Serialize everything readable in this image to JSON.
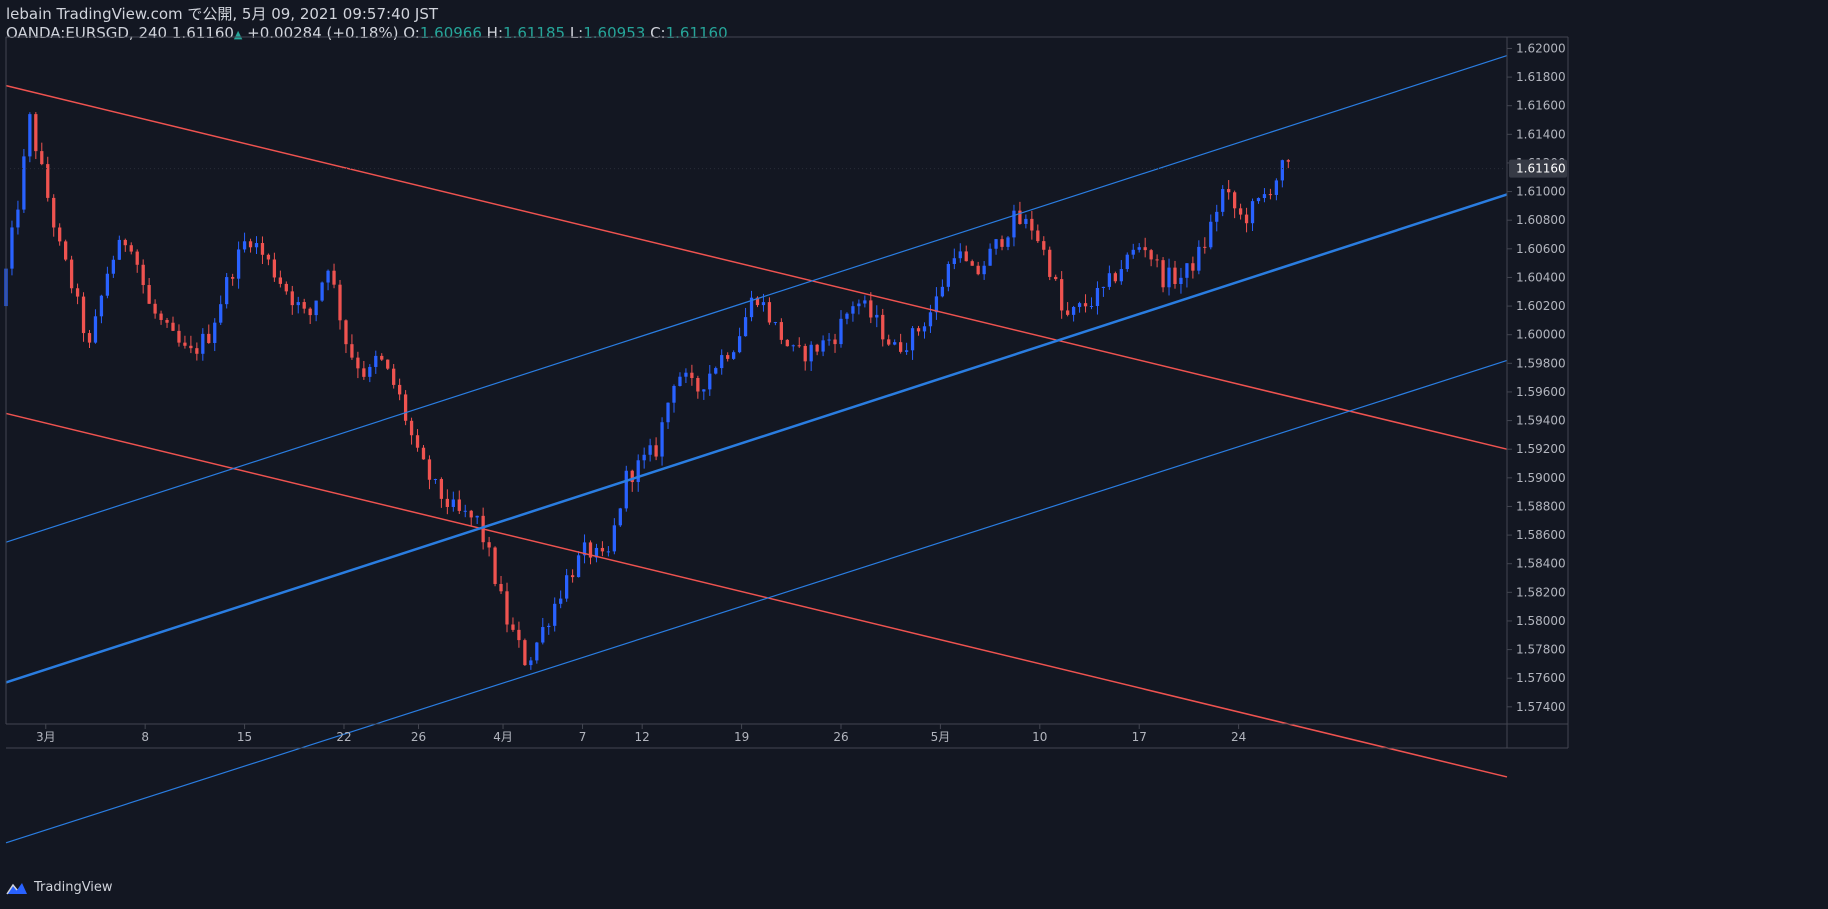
{
  "header": {
    "line1": "lebain TradingView.com で公開, 5月 09, 2021 09:57:40 JST",
    "symbol": "OANDA:EURSGD, 240",
    "last": "1.61160",
    "change_arrow": "▲",
    "change": "+0.00284 (+0.18%)",
    "o_label": "O:",
    "o_value": "1.60966",
    "h_label": "H:",
    "h_value": "1.61185",
    "l_label": "L:",
    "l_value": "1.60953",
    "c_label": "C:",
    "c_value": "1.61160"
  },
  "footer": {
    "brand": "TradingView",
    "logo_icon": "tradingview-logo-icon"
  },
  "colors": {
    "background": "#131722",
    "up": "#2962ff",
    "down": "#ef5350",
    "channel_blue": "#2a7de1",
    "channel_red": "#ef5350",
    "axis_text": "#b2b5be",
    "border": "#434651"
  },
  "chart_data": {
    "type": "candlestick",
    "symbol": "OANDA:EURSGD",
    "interval": "240",
    "price_label": "1.61160",
    "yticks": [
      "1.57400",
      "1.57600",
      "1.57800",
      "1.58000",
      "1.58200",
      "1.58400",
      "1.58600",
      "1.58800",
      "1.59000",
      "1.59200",
      "1.59400",
      "1.59600",
      "1.59800",
      "1.60000",
      "1.60200",
      "1.60400",
      "1.60600",
      "1.60800",
      "1.61000",
      "1.61200",
      "1.61400",
      "1.61600",
      "1.61800",
      "1.62000"
    ],
    "ylim": [
      1.5728,
      1.6208
    ],
    "xlim": [
      0,
      151
    ],
    "xticks": [
      {
        "label": "3月",
        "day": 4
      },
      {
        "label": "8",
        "day": 14
      },
      {
        "label": "15",
        "day": 24
      },
      {
        "label": "22",
        "day": 34
      },
      {
        "label": "26",
        "day": 41.5
      },
      {
        "label": "4月",
        "day": 50
      },
      {
        "label": "7",
        "day": 58
      },
      {
        "label": "12",
        "day": 64
      },
      {
        "label": "19",
        "day": 74
      },
      {
        "label": "26",
        "day": 84
      },
      {
        "label": "5月",
        "day": 94
      },
      {
        "label": "10",
        "day": 104
      },
      {
        "label": "17",
        "day": 114
      },
      {
        "label": "24",
        "day": 124
      }
    ],
    "candle_waypoints": [
      [
        0,
        1.602
      ],
      [
        2,
        1.61
      ],
      [
        3,
        1.615
      ],
      [
        4,
        1.612
      ],
      [
        6,
        1.606
      ],
      [
        7,
        1.604
      ],
      [
        9,
        1.599
      ],
      [
        11,
        1.605
      ],
      [
        13,
        1.607
      ],
      [
        15,
        1.602
      ],
      [
        17,
        1.6
      ],
      [
        19,
        1.5985
      ],
      [
        21,
        1.6
      ],
      [
        23,
        1.604
      ],
      [
        25,
        1.607
      ],
      [
        27,
        1.605
      ],
      [
        29,
        1.603
      ],
      [
        31,
        1.601
      ],
      [
        33,
        1.605
      ],
      [
        35,
        1.599
      ],
      [
        37,
        1.597
      ],
      [
        38,
        1.5985
      ],
      [
        40,
        1.596
      ],
      [
        42,
        1.5915
      ],
      [
        44,
        1.589
      ],
      [
        46,
        1.5875
      ],
      [
        48,
        1.587
      ],
      [
        49,
        1.585
      ],
      [
        51,
        1.58
      ],
      [
        53,
        1.577
      ],
      [
        55,
        1.58
      ],
      [
        57,
        1.583
      ],
      [
        59,
        1.585
      ],
      [
        61,
        1.584
      ],
      [
        63,
        1.59
      ],
      [
        66,
        1.592
      ],
      [
        68,
        1.5975
      ],
      [
        70,
        1.596
      ],
      [
        72,
        1.598
      ],
      [
        74,
        1.5995
      ],
      [
        76,
        1.603
      ],
      [
        78,
        1.6005
      ],
      [
        80,
        1.5985
      ],
      [
        82,
        1.599
      ],
      [
        84,
        1.6
      ],
      [
        86,
        1.6025
      ],
      [
        88,
        1.601
      ],
      [
        90,
        1.599
      ],
      [
        92,
        1.6
      ],
      [
        94,
        1.602
      ],
      [
        96,
        1.606
      ],
      [
        98,
        1.604
      ],
      [
        100,
        1.606
      ],
      [
        102,
        1.608
      ],
      [
        104,
        1.6075
      ],
      [
        106,
        1.604
      ],
      [
        107,
        1.601
      ],
      [
        109,
        1.602
      ],
      [
        111,
        1.603
      ],
      [
        113,
        1.605
      ],
      [
        115,
        1.6065
      ],
      [
        117,
        1.604
      ],
      [
        119,
        1.604
      ],
      [
        121,
        1.606
      ],
      [
        123,
        1.61
      ],
      [
        125,
        1.608
      ],
      [
        127,
        1.6095
      ],
      [
        129,
        1.6116
      ]
    ],
    "trendlines": [
      {
        "color": "red",
        "width": 1.5,
        "p1": [
          0,
          1.6174
        ],
        "p2": [
          151,
          1.592
        ]
      },
      {
        "color": "red",
        "width": 1.5,
        "p1": [
          0,
          1.5945
        ],
        "p2": [
          151,
          1.5691
        ]
      },
      {
        "color": "blue",
        "width": 1.2,
        "p1": [
          0,
          1.5855
        ],
        "p2": [
          151,
          1.6195
        ]
      },
      {
        "color": "blue",
        "width": 2.5,
        "p1": [
          0,
          1.5757
        ],
        "p2": [
          151,
          1.6098
        ]
      },
      {
        "color": "blue",
        "width": 1.2,
        "p1": [
          0,
          1.5645
        ],
        "p2": [
          151,
          1.5982
        ]
      }
    ]
  }
}
